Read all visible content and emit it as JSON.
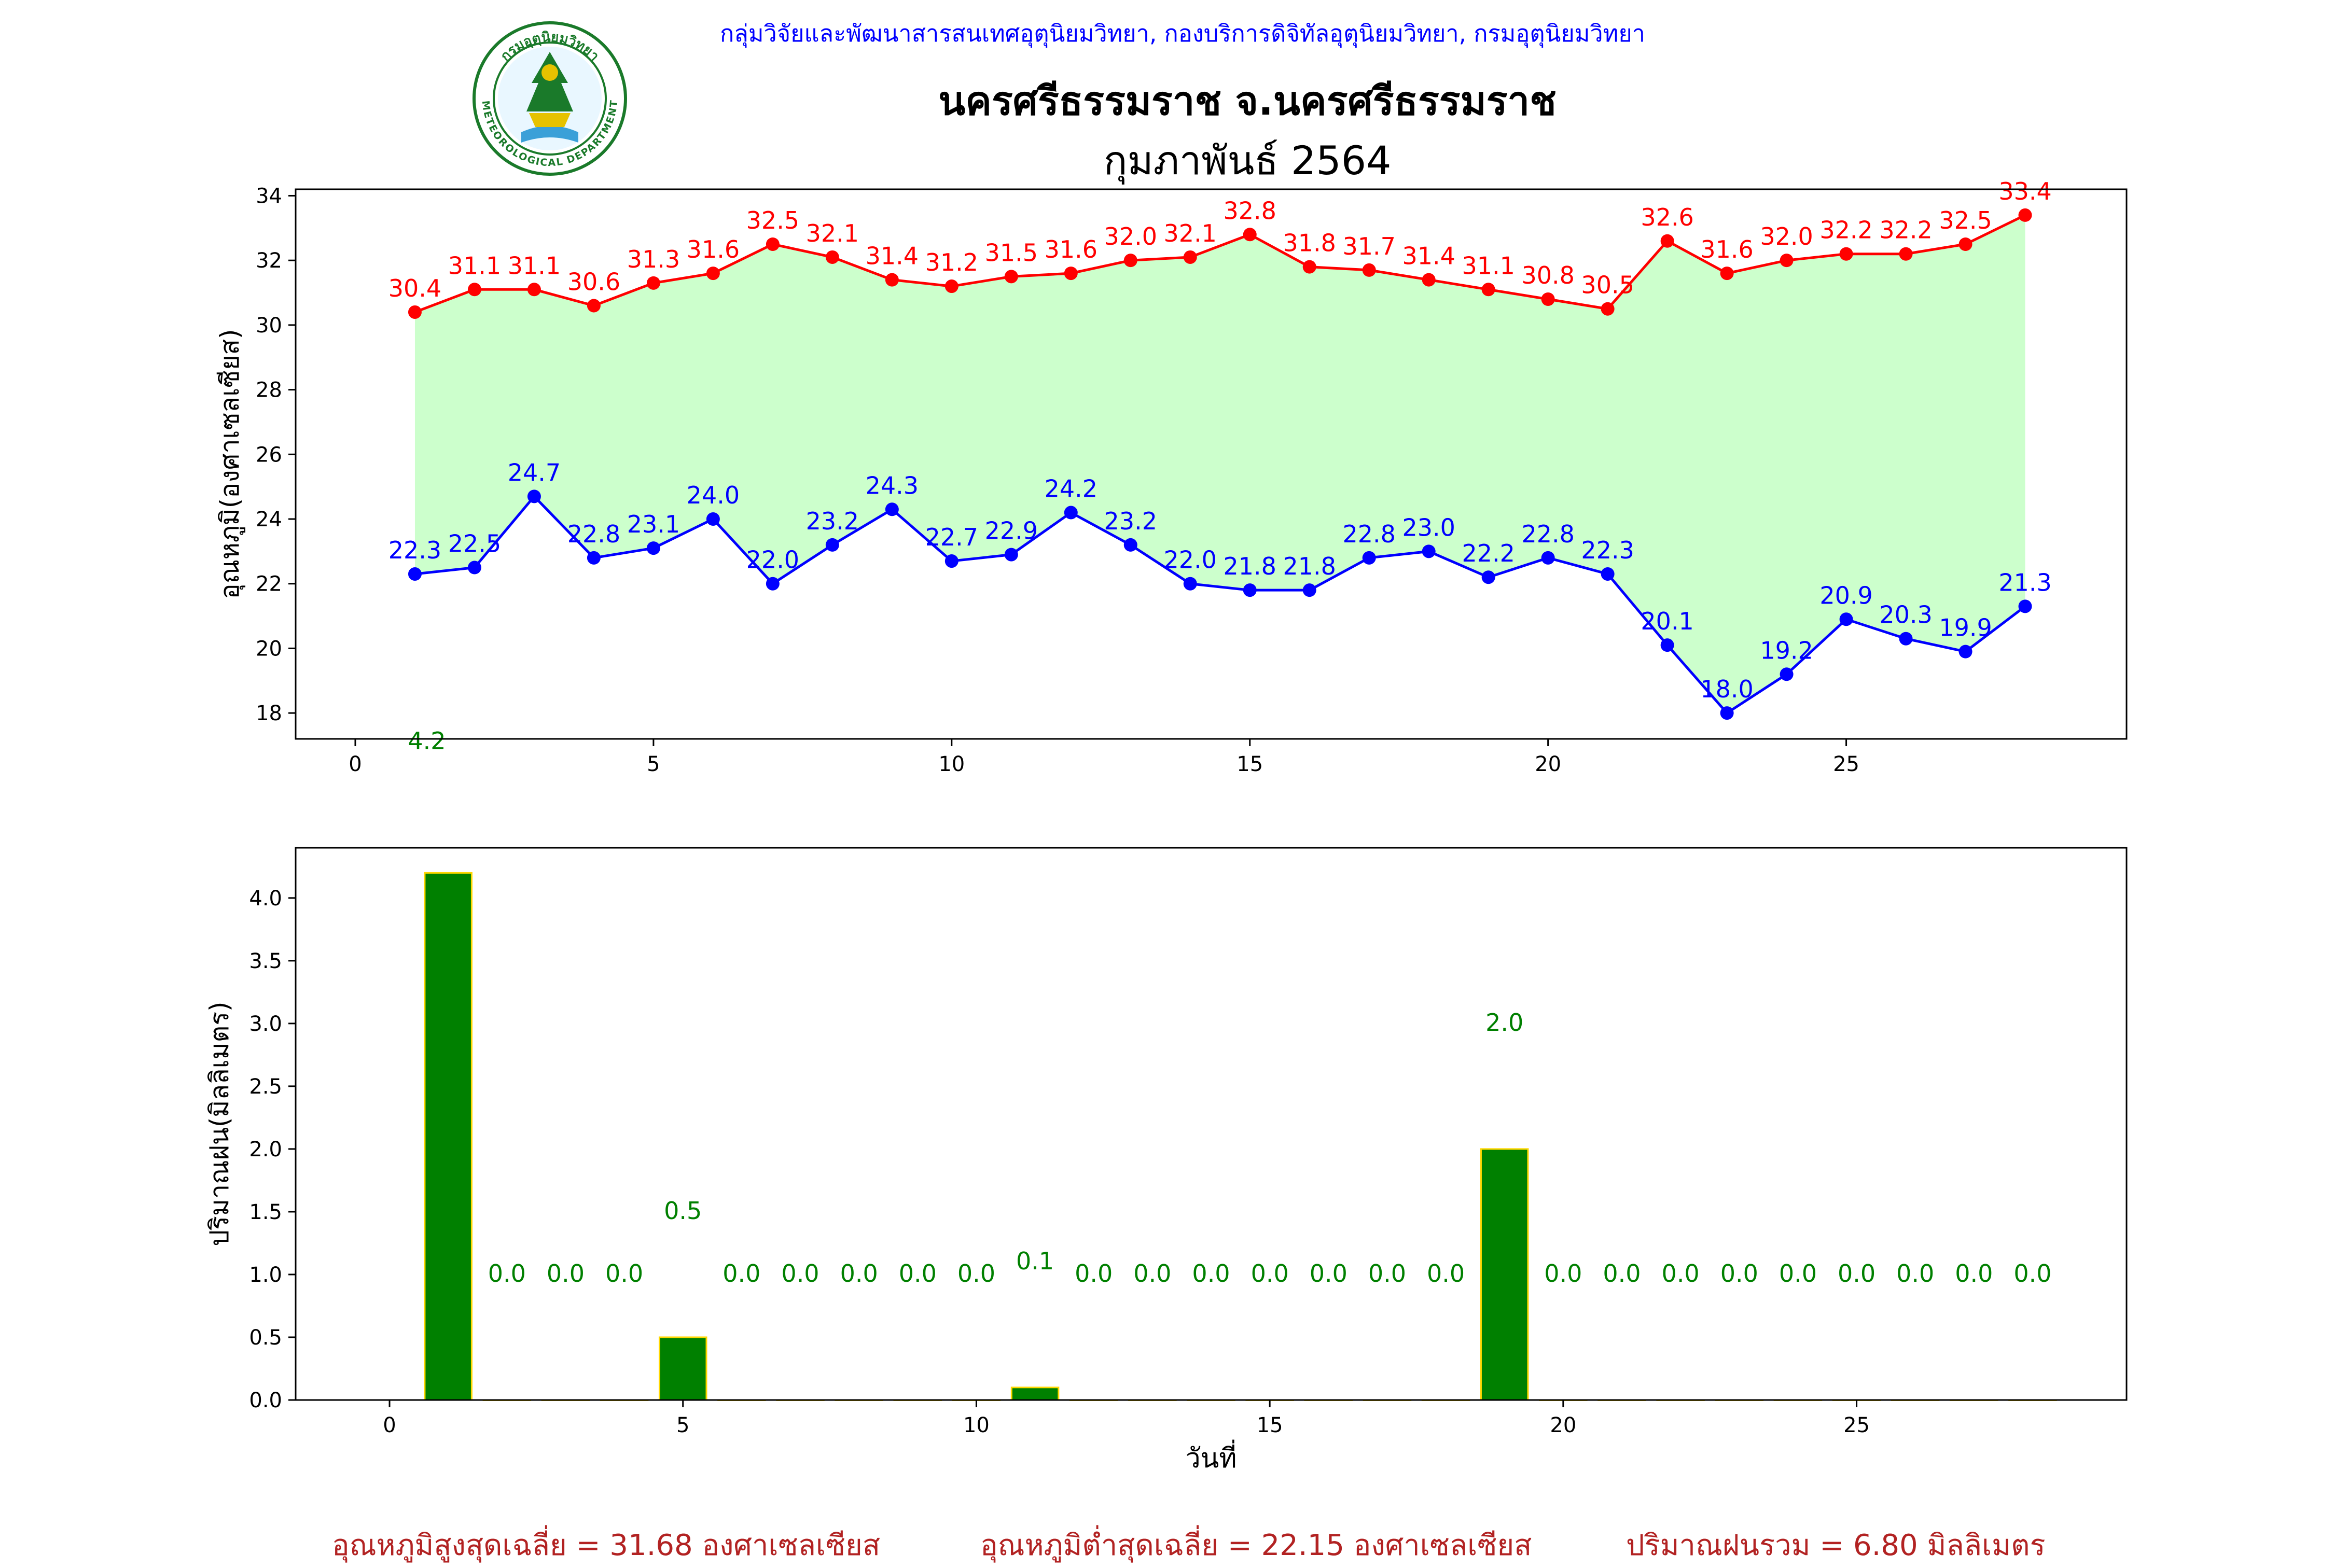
{
  "header": {
    "organization": "กลุ่มวิจัยและพัฒนาสารสนเทศอุตุนิยมวิทยา, กองบริการดิจิทัลอุตุนิยมวิทยา, กรมอุตุนิยมวิทยา",
    "station": "นครศรีธรรมราช จ.นครศรีธรรมราช",
    "month": "กุมภาพันธ์ 2564"
  },
  "logo": {
    "text_top": "กรมอุตุนิยมวิทยา",
    "text_bottom": "METEOROLOGICAL DEPARTMENT",
    "ring_color": "#1a7a2a"
  },
  "chart_data": [
    {
      "type": "line",
      "ylabel": "อุณหภูมิ(องศาเซลเซียส)",
      "xlabel": "",
      "xlim": [
        -1,
        29.7
      ],
      "ylim": [
        17.2,
        34.2
      ],
      "xticks": [
        0,
        5,
        10,
        15,
        20,
        25
      ],
      "yticks": [
        18,
        20,
        22,
        24,
        26,
        28,
        30,
        32,
        34
      ],
      "x": [
        1,
        2,
        3,
        4,
        5,
        6,
        7,
        8,
        9,
        10,
        11,
        12,
        13,
        14,
        15,
        16,
        17,
        18,
        19,
        20,
        21,
        22,
        23,
        24,
        25,
        26,
        27,
        28
      ],
      "fill_between": {
        "color": "#ccffcc",
        "between": [
          "max",
          "min"
        ]
      },
      "series": [
        {
          "id": "max",
          "color": "#ff0000",
          "values": [
            30.4,
            31.1,
            31.1,
            30.6,
            31.3,
            31.6,
            32.5,
            32.1,
            31.4,
            31.2,
            31.5,
            31.6,
            32.0,
            32.1,
            32.8,
            31.8,
            31.7,
            31.4,
            31.1,
            30.8,
            30.5,
            32.6,
            31.6,
            32.0,
            32.2,
            32.2,
            32.5,
            33.4
          ]
        },
        {
          "id": "min",
          "color": "#0000ff",
          "values": [
            22.3,
            22.5,
            24.7,
            22.8,
            23.1,
            24.0,
            22.0,
            23.2,
            24.3,
            22.7,
            22.9,
            24.2,
            23.2,
            22.0,
            21.8,
            21.8,
            22.8,
            23.0,
            22.2,
            22.8,
            22.3,
            20.1,
            18.0,
            19.2,
            20.9,
            20.3,
            19.9,
            21.3
          ]
        }
      ],
      "annotations": [
        {
          "text": "4.2",
          "x": 1.2,
          "y": 17.1,
          "color": "#008000"
        }
      ]
    },
    {
      "type": "bar",
      "ylabel": "ปริมาณฝน(มิลลิเมตร)",
      "xlabel": "วันที่",
      "xlim": [
        -1.6,
        29.6
      ],
      "ylim": [
        0,
        4.4
      ],
      "xticks": [
        0,
        5,
        10,
        15,
        20,
        25
      ],
      "yticks": [
        0.0,
        0.5,
        1.0,
        1.5,
        2.0,
        2.5,
        3.0,
        3.5,
        4.0
      ],
      "bar_color": "#008000",
      "edge_color": "#ffd700",
      "label_color": "#008000",
      "x": [
        1,
        2,
        3,
        4,
        5,
        6,
        7,
        8,
        9,
        10,
        11,
        12,
        13,
        14,
        15,
        16,
        17,
        18,
        19,
        20,
        21,
        22,
        23,
        24,
        25,
        26,
        27,
        28
      ],
      "values": [
        4.2,
        0.0,
        0.0,
        0.0,
        0.5,
        0.0,
        0.0,
        0.0,
        0.0,
        0.0,
        0.1,
        0.0,
        0.0,
        0.0,
        0.0,
        0.0,
        0.0,
        0.0,
        2.0,
        0.0,
        0.0,
        0.0,
        0.0,
        0.0,
        0.0,
        0.0,
        0.0,
        0.0
      ]
    }
  ],
  "summary": {
    "avg_max": "อุณหภูมิสูงสุดเฉลี่ย = 31.68 องศาเซลเซียส",
    "avg_min": "อุณหภูมิต่ำสุดเฉลี่ย = 22.15 องศาเซลเซียส",
    "total_rain": "ปริมาณฝนรวม = 6.80 มิลลิเมตร"
  }
}
